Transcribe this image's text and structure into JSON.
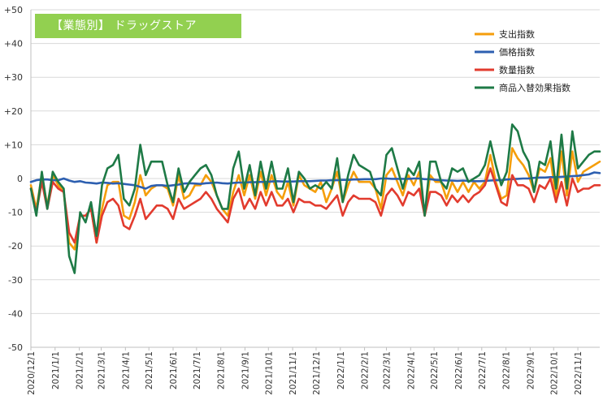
{
  "title": "【業態別】 ドラッグストア",
  "chart_data": {
    "type": "line",
    "ylim": [
      -50,
      50
    ],
    "yticks": [
      50,
      40,
      30,
      20,
      10,
      0,
      -10,
      -20,
      -30,
      -40,
      -50
    ],
    "ytick_labels": [
      "+50",
      "+40",
      "+30",
      "+20",
      "+10",
      "0",
      "-10",
      "-20",
      "-30",
      "-40",
      "-50"
    ],
    "grid": true,
    "legend_position": "top-right",
    "x_tick_labels": [
      "2020/12/1",
      "2021/1/1",
      "2021/2/1",
      "2021/3/1",
      "2021/4/1",
      "2021/5/1",
      "2021/6/1",
      "2021/7/1",
      "2021/8/1",
      "2021/9/1",
      "2021/10/1",
      "2021/11/1",
      "2021/12/1",
      "2022/1/1",
      "2022/2/1",
      "2022/3/1",
      "2022/4/1",
      "2022/5/1",
      "2022/6/1",
      "2022/7/1",
      "2022/8/1",
      "2022/9/1",
      "2022/10/1",
      "2022/11/1"
    ],
    "x_dates": [
      "2020-12-01",
      "2020-12-08",
      "2020-12-15",
      "2020-12-22",
      "2020-12-29",
      "2021-01-05",
      "2021-01-12",
      "2021-01-19",
      "2021-01-26",
      "2021-02-02",
      "2021-02-09",
      "2021-02-16",
      "2021-02-23",
      "2021-03-02",
      "2021-03-09",
      "2021-03-16",
      "2021-03-23",
      "2021-03-30",
      "2021-04-06",
      "2021-04-13",
      "2021-04-20",
      "2021-04-27",
      "2021-05-04",
      "2021-05-11",
      "2021-05-18",
      "2021-05-25",
      "2021-06-01",
      "2021-06-08",
      "2021-06-15",
      "2021-06-22",
      "2021-06-29",
      "2021-07-06",
      "2021-07-13",
      "2021-07-20",
      "2021-07-27",
      "2021-08-03",
      "2021-08-10",
      "2021-08-17",
      "2021-08-24",
      "2021-08-31",
      "2021-09-07",
      "2021-09-14",
      "2021-09-21",
      "2021-09-28",
      "2021-10-05",
      "2021-10-12",
      "2021-10-19",
      "2021-10-26",
      "2021-11-02",
      "2021-11-09",
      "2021-11-16",
      "2021-11-23",
      "2021-11-30",
      "2021-12-07",
      "2021-12-14",
      "2021-12-21",
      "2021-12-28",
      "2022-01-04",
      "2022-01-11",
      "2022-01-18",
      "2022-01-25",
      "2022-02-01",
      "2022-02-08",
      "2022-02-15",
      "2022-02-22",
      "2022-03-01",
      "2022-03-08",
      "2022-03-15",
      "2022-03-22",
      "2022-03-29",
      "2022-04-05",
      "2022-04-12",
      "2022-04-19",
      "2022-04-26",
      "2022-05-03",
      "2022-05-10",
      "2022-05-17",
      "2022-05-24",
      "2022-05-31",
      "2022-06-07",
      "2022-06-14",
      "2022-06-21",
      "2022-06-28",
      "2022-07-05",
      "2022-07-12",
      "2022-07-19",
      "2022-07-26",
      "2022-08-02",
      "2022-08-09",
      "2022-08-16",
      "2022-08-23",
      "2022-08-30",
      "2022-09-06",
      "2022-09-13",
      "2022-09-20",
      "2022-09-27",
      "2022-10-04",
      "2022-10-11",
      "2022-10-18",
      "2022-10-25",
      "2022-11-01",
      "2022-11-08",
      "2022-11-15",
      "2022-11-22",
      "2022-11-29"
    ],
    "series": [
      {
        "name": "支出指数",
        "color": "#f59e0b",
        "values": [
          -2,
          -9,
          1,
          -8,
          1,
          -2,
          -4,
          -19,
          -21,
          -11,
          -11,
          -9,
          -19,
          -9,
          -2,
          -1,
          -1,
          -11,
          -12,
          -7,
          1,
          -5,
          -3,
          -2,
          -2,
          -3,
          -8,
          1,
          -6,
          -5,
          -2,
          -2,
          1,
          -1,
          -5,
          -9,
          -11,
          -4,
          1,
          -5,
          1,
          -6,
          2,
          -5,
          1,
          -4,
          -6,
          -1,
          -8,
          1,
          -2,
          -3,
          -4,
          -1,
          -7,
          -3,
          2,
          -7,
          -2,
          2,
          -1,
          -1,
          -1,
          -3,
          -9,
          1,
          3,
          -1,
          -5,
          1,
          -2,
          2,
          -11,
          1,
          -1,
          -1,
          -6,
          -1,
          -4,
          -1,
          -4,
          -1,
          -3,
          -1,
          7,
          -1,
          -6,
          -5,
          9,
          6,
          4,
          1,
          -4,
          3,
          2,
          6,
          -6,
          8,
          -5,
          8,
          -1,
          2,
          3,
          4,
          5
        ]
      },
      {
        "name": "価格指数",
        "color": "#2d5fb0",
        "values": [
          -1,
          -0.5,
          -0.3,
          -0.3,
          -0.5,
          -0.5,
          0,
          -0.6,
          -1,
          -0.8,
          -1.2,
          -1.3,
          -1.5,
          -1.2,
          -1.3,
          -1.5,
          -1.4,
          -1.6,
          -1.8,
          -2,
          -2.5,
          -3,
          -2.2,
          -2,
          -2,
          -2.2,
          -2,
          -1.8,
          -1.5,
          -1.4,
          -1.5,
          -1.6,
          -1.4,
          -1.3,
          -1.2,
          -1.4,
          -1.5,
          -1.3,
          -1.2,
          -1.2,
          -1.1,
          -1.1,
          -1,
          -1,
          -0.9,
          -0.8,
          -0.9,
          -0.9,
          -0.9,
          -0.8,
          -0.8,
          -0.8,
          -0.7,
          -0.6,
          -0.6,
          -0.5,
          -0.5,
          -0.4,
          -0.4,
          -0.3,
          -0.3,
          -0.2,
          -0.2,
          -0.2,
          0,
          0,
          -0.1,
          -0.1,
          -0.1,
          -0.1,
          0,
          0,
          -0.2,
          -0.2,
          -0.4,
          -0.5,
          -0.6,
          -0.6,
          -0.7,
          -0.6,
          -0.7,
          -0.8,
          -0.8,
          -0.7,
          -0.6,
          -0.5,
          -0.5,
          -0.3,
          -0.2,
          -0.1,
          0,
          0,
          0.2,
          0.3,
          0.3,
          0.4,
          0.4,
          0.5,
          0.6,
          0.7,
          0.8,
          1,
          1.2,
          1.8,
          1.6
        ]
      },
      {
        "name": "数量指数",
        "color": "#e23b2e",
        "values": [
          -3,
          -10,
          -1,
          -9,
          -1,
          -3,
          -4,
          -16,
          -19,
          -11,
          -11,
          -9,
          -19,
          -11,
          -7,
          -6,
          -8,
          -14,
          -15,
          -11,
          -6,
          -12,
          -10,
          -8,
          -8,
          -9,
          -12,
          -6,
          -9,
          -8,
          -7,
          -6,
          -4,
          -6,
          -9,
          -11,
          -13,
          -6,
          -3,
          -9,
          -6,
          -9,
          -4,
          -8,
          -4,
          -8,
          -8,
          -6,
          -10,
          -6,
          -7,
          -7,
          -8,
          -8,
          -9,
          -7,
          -5,
          -11,
          -7,
          -5,
          -6,
          -6,
          -6,
          -7,
          -11,
          -5,
          -3,
          -5,
          -8,
          -4,
          -5,
          -3,
          -11,
          -4,
          -4,
          -5,
          -8,
          -5,
          -7,
          -5,
          -7,
          -5,
          -4,
          -2,
          3,
          -2,
          -7,
          -8,
          1,
          -2,
          -2,
          -3,
          -7,
          -2,
          -3,
          0,
          -7,
          -1,
          -8,
          0,
          -4,
          -3,
          -3,
          -2,
          -2
        ]
      },
      {
        "name": "商品入替効果指数",
        "color": "#1e7a46",
        "values": [
          -3,
          -11,
          2,
          -9,
          2,
          -1,
          -3,
          -23,
          -28,
          -10,
          -13,
          -7,
          -17,
          -2,
          3,
          4,
          7,
          -6,
          -8,
          -3,
          10,
          1,
          5,
          5,
          5,
          -2,
          -7,
          3,
          -4,
          -1,
          1,
          3,
          4,
          1,
          -5,
          -9,
          -9,
          3,
          8,
          -3,
          4,
          -5,
          5,
          -3,
          5,
          -3,
          -3,
          3,
          -7,
          2,
          0,
          -3,
          -2,
          -3,
          -1,
          -3,
          6,
          -7,
          1,
          7,
          4,
          3,
          2,
          -3,
          -5,
          7,
          9,
          3,
          -3,
          3,
          1,
          5,
          -11,
          5,
          5,
          -1,
          -3,
          3,
          2,
          3,
          -1,
          0,
          1,
          4,
          11,
          4,
          -2,
          2,
          16,
          14,
          8,
          5,
          -4,
          5,
          4,
          11,
          -3,
          13,
          -3,
          14,
          3,
          5,
          7,
          8,
          8
        ]
      }
    ]
  }
}
